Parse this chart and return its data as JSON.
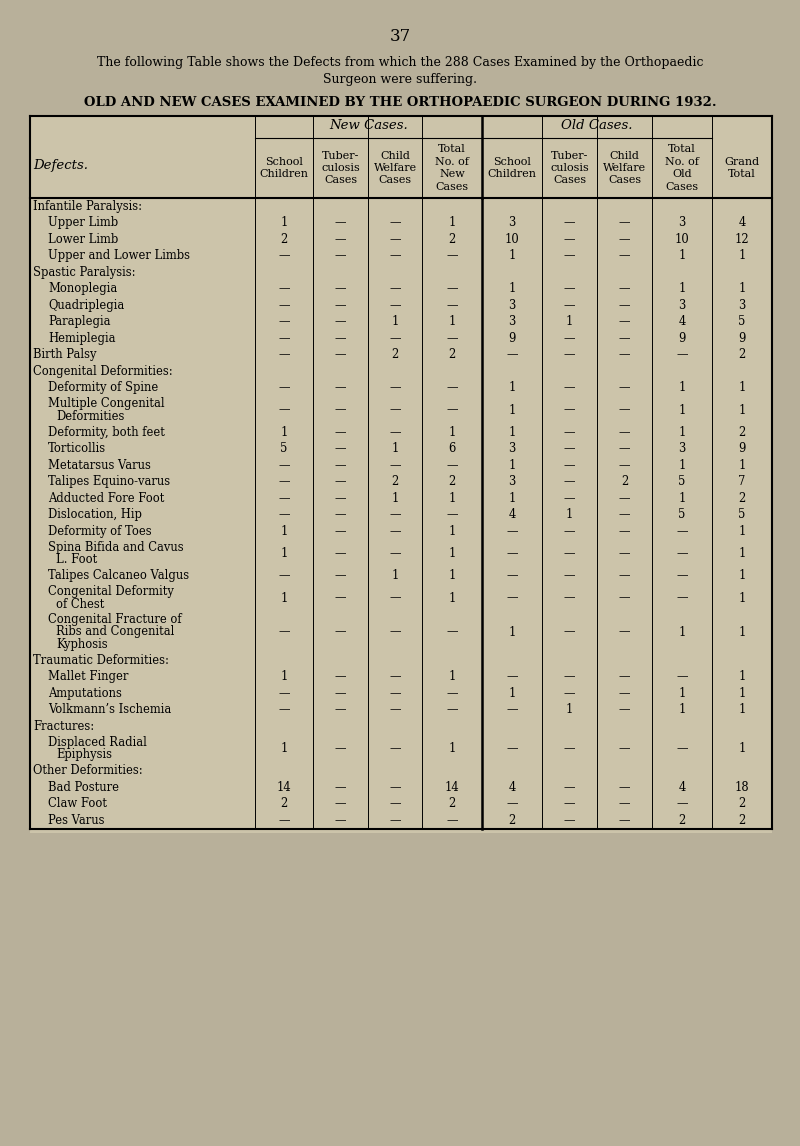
{
  "page_number": "37",
  "intro_text_line1": "The following Table shows the Defects from which the 288 Cases Examined by the Orthopaedic",
  "intro_text_line2": "Surgeon were suffering.",
  "table_title": "OLD AND NEW CASES EXAMINED BY THE ORTHOPAEDIC SURGEON DURING 1932.",
  "bg_color": "#b8b09a",
  "table_bg_color": "#d8d0b8",
  "header_new_cases": "New Cases.",
  "header_old_cases": "Old Cases.",
  "rows": [
    {
      "label": "Infantile Paralysis:",
      "section": true,
      "multiline": false,
      "values": [
        "",
        "",
        "",
        "",
        "",
        "",
        "",
        "",
        ""
      ]
    },
    {
      "label": "Upper Limb",
      "section": false,
      "multiline": false,
      "values": [
        "1",
        "—",
        "—",
        "1",
        "3",
        "—",
        "—",
        "3",
        "4"
      ]
    },
    {
      "label": "Lower Limb",
      "section": false,
      "multiline": false,
      "values": [
        "2",
        "—",
        "—",
        "2",
        "10",
        "—",
        "—",
        "10",
        "12"
      ]
    },
    {
      "label": "Upper and Lower Limbs",
      "section": false,
      "multiline": false,
      "values": [
        "—",
        "—",
        "—",
        "—",
        "1",
        "—",
        "—",
        "1",
        "1"
      ]
    },
    {
      "label": "Spastic Paralysis:",
      "section": true,
      "multiline": false,
      "values": [
        "",
        "",
        "",
        "",
        "",
        "",
        "",
        "",
        ""
      ]
    },
    {
      "label": "Monoplegia",
      "section": false,
      "multiline": false,
      "values": [
        "—",
        "—",
        "—",
        "—",
        "1",
        "—",
        "—",
        "1",
        "1"
      ]
    },
    {
      "label": "Quadriplegia",
      "section": false,
      "multiline": false,
      "values": [
        "—",
        "—",
        "—",
        "—",
        "3",
        "—",
        "—",
        "3",
        "3"
      ]
    },
    {
      "label": "Paraplegia",
      "section": false,
      "multiline": false,
      "values": [
        "—",
        "—",
        "1",
        "1",
        "3",
        "1",
        "—",
        "4",
        "5"
      ]
    },
    {
      "label": "Hemiplegia",
      "section": false,
      "multiline": false,
      "values": [
        "—",
        "—",
        "—",
        "—",
        "9",
        "—",
        "—",
        "9",
        "9"
      ]
    },
    {
      "label": "Birth Palsy",
      "section": true,
      "multiline": false,
      "values": [
        "—",
        "—",
        "2",
        "2",
        "—",
        "—",
        "—",
        "—",
        "2"
      ]
    },
    {
      "label": "Congenital Deformities:",
      "section": true,
      "multiline": false,
      "values": [
        "",
        "",
        "",
        "",
        "",
        "",
        "",
        "",
        ""
      ]
    },
    {
      "label": "Deformity of Spine",
      "section": false,
      "multiline": false,
      "values": [
        "—",
        "—",
        "—",
        "—",
        "1",
        "—",
        "—",
        "1",
        "1"
      ]
    },
    {
      "label": "Multiple Congenital",
      "section": false,
      "multiline": true,
      "line2": "Deformities",
      "values": [
        "—",
        "—",
        "—",
        "—",
        "1",
        "—",
        "—",
        "1",
        "1"
      ]
    },
    {
      "label": "Deformity, both feet",
      "section": false,
      "multiline": false,
      "values": [
        "1",
        "—",
        "—",
        "1",
        "1",
        "—",
        "—",
        "1",
        "2"
      ]
    },
    {
      "label": "Torticollis",
      "section": false,
      "multiline": false,
      "values": [
        "5",
        "—",
        "1",
        "6",
        "3",
        "—",
        "—",
        "3",
        "9"
      ]
    },
    {
      "label": "Metatarsus Varus",
      "section": false,
      "multiline": false,
      "values": [
        "—",
        "—",
        "—",
        "—",
        "1",
        "—",
        "—",
        "1",
        "1"
      ]
    },
    {
      "label": "Talipes Equino-varus",
      "section": false,
      "multiline": false,
      "values": [
        "—",
        "—",
        "2",
        "2",
        "3",
        "—",
        "2",
        "5",
        "7"
      ]
    },
    {
      "label": "Adducted Fore Foot",
      "section": false,
      "multiline": false,
      "values": [
        "—",
        "—",
        "1",
        "1",
        "1",
        "—",
        "—",
        "1",
        "2"
      ]
    },
    {
      "label": "Dislocation, Hip",
      "section": false,
      "multiline": false,
      "values": [
        "—",
        "—",
        "—",
        "—",
        "4",
        "1",
        "—",
        "5",
        "5"
      ]
    },
    {
      "label": "Deformity of Toes",
      "section": false,
      "multiline": false,
      "values": [
        "1",
        "—",
        "—",
        "1",
        "—",
        "—",
        "—",
        "—",
        "1"
      ]
    },
    {
      "label": "Spina Bifida and Cavus",
      "section": false,
      "multiline": true,
      "line2": "L. Foot",
      "values": [
        "1",
        "—",
        "—",
        "1",
        "—",
        "—",
        "—",
        "—",
        "1"
      ]
    },
    {
      "label": "Talipes Calcaneo Valgus",
      "section": false,
      "multiline": false,
      "values": [
        "—",
        "—",
        "1",
        "1",
        "—",
        "—",
        "—",
        "—",
        "1"
      ]
    },
    {
      "label": "Congenital Deformity",
      "section": false,
      "multiline": true,
      "line2": "of Chest",
      "values": [
        "1",
        "—",
        "—",
        "1",
        "—",
        "—",
        "—",
        "—",
        "1"
      ]
    },
    {
      "label": "Congenital Fracture of",
      "section": false,
      "multiline": true,
      "line2": "Ribs and Congenital",
      "line3": "Kyphosis",
      "values": [
        "—",
        "—",
        "—",
        "—",
        "1",
        "—",
        "—",
        "1",
        "1"
      ]
    },
    {
      "label": "Traumatic Deformities:",
      "section": true,
      "multiline": false,
      "values": [
        "",
        "",
        "",
        "",
        "",
        "",
        "",
        "",
        ""
      ]
    },
    {
      "label": "Mallet Finger",
      "section": false,
      "multiline": false,
      "values": [
        "1",
        "—",
        "—",
        "1",
        "—",
        "—",
        "—",
        "—",
        "1"
      ]
    },
    {
      "label": "Amputations",
      "section": false,
      "multiline": false,
      "values": [
        "—",
        "—",
        "—",
        "—",
        "1",
        "—",
        "—",
        "1",
        "1"
      ]
    },
    {
      "label": "Volkmann’s Ischemia",
      "section": false,
      "multiline": false,
      "values": [
        "—",
        "—",
        "—",
        "—",
        "—",
        "1",
        "—",
        "1",
        "1"
      ]
    },
    {
      "label": "Fractures:",
      "section": true,
      "multiline": false,
      "values": [
        "",
        "",
        "",
        "",
        "",
        "",
        "",
        "",
        ""
      ]
    },
    {
      "label": "Displaced Radial",
      "section": false,
      "multiline": true,
      "line2": "Epiphysis",
      "values": [
        "1",
        "—",
        "—",
        "1",
        "—",
        "—",
        "—",
        "—",
        "1"
      ]
    },
    {
      "label": "Other Deformities:",
      "section": true,
      "multiline": false,
      "values": [
        "",
        "",
        "",
        "",
        "",
        "",
        "",
        "",
        ""
      ]
    },
    {
      "label": "Bad Posture",
      "section": false,
      "multiline": false,
      "values": [
        "14",
        "—",
        "—",
        "14",
        "4",
        "—",
        "—",
        "4",
        "18"
      ]
    },
    {
      "label": "Claw Foot",
      "section": false,
      "multiline": false,
      "values": [
        "2",
        "—",
        "—",
        "2",
        "—",
        "—",
        "—",
        "—",
        "2"
      ]
    },
    {
      "label": "Pes Varus",
      "section": false,
      "multiline": false,
      "values": [
        "—",
        "—",
        "—",
        "—",
        "2",
        "—",
        "—",
        "2",
        "2"
      ]
    }
  ]
}
